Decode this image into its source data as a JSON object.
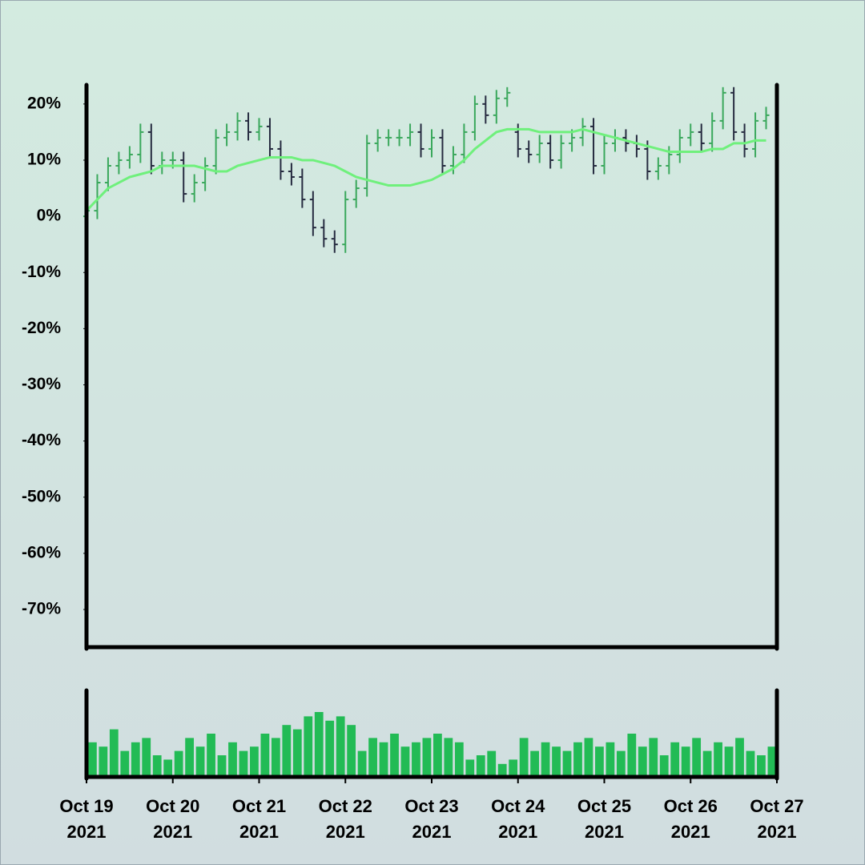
{
  "chart_data": [
    {
      "type": "ohlc",
      "categories": [
        null,
        null,
        null,
        null,
        null,
        null,
        null,
        null,
        null,
        null,
        null,
        null,
        null,
        null,
        null,
        null,
        null,
        null,
        null,
        null,
        null,
        null,
        null,
        null,
        null,
        null,
        null,
        null,
        null,
        null,
        null,
        null,
        null,
        null,
        null,
        null,
        null,
        null,
        null,
        null,
        null,
        null,
        null,
        null,
        null,
        null,
        null,
        null,
        null,
        null,
        null,
        null,
        null,
        null,
        null,
        null,
        null,
        null,
        null,
        null,
        null,
        null,
        null,
        null
      ],
      "open": [
        0,
        1,
        6,
        9,
        10,
        11,
        15,
        9,
        10,
        10,
        4,
        6,
        9,
        14,
        15,
        17,
        15,
        16,
        12,
        8,
        7,
        3,
        -2,
        -4,
        -5,
        3,
        5,
        13,
        14,
        14,
        14,
        15,
        12,
        14,
        9,
        11,
        15,
        20,
        18,
        21,
        15,
        12,
        11,
        13,
        10,
        13,
        14,
        16,
        9,
        13,
        14,
        13,
        12,
        8,
        9,
        11,
        14,
        15,
        13,
        17,
        22,
        15,
        12,
        17
      ],
      "high": [
        2.5,
        7.5,
        10.5,
        11.5,
        12.5,
        16.5,
        16.5,
        11.5,
        11.5,
        11.5,
        7.5,
        10.5,
        15.5,
        16.5,
        18.5,
        18.5,
        17.5,
        17.5,
        13.5,
        9.5,
        8.5,
        4.5,
        -0.5,
        -2.5,
        4.5,
        6.5,
        14.5,
        15.5,
        15.5,
        15.5,
        16.5,
        16.5,
        15.5,
        15.5,
        12.5,
        16.5,
        21.5,
        21.5,
        22.5,
        23,
        16.5,
        13.5,
        14.5,
        14.5,
        14.5,
        15.5,
        17.5,
        17.5,
        14.5,
        15.5,
        15.5,
        14.5,
        13.5,
        10.5,
        12.5,
        15.5,
        16.5,
        16.5,
        18.5,
        23,
        23,
        16.5,
        18.5,
        19.5
      ],
      "low": [
        -1.5,
        -0.5,
        4.5,
        7.5,
        8.5,
        9.5,
        7.5,
        7.5,
        8.5,
        2.5,
        2.5,
        4.5,
        7.5,
        12.5,
        13.5,
        13.5,
        13.5,
        10.5,
        6.5,
        5.5,
        1.5,
        -3.5,
        -5.5,
        -6.5,
        -6.5,
        1.5,
        3.5,
        11.5,
        12.5,
        12.5,
        12.5,
        10.5,
        10.5,
        7.5,
        7.5,
        9.5,
        13.5,
        16.5,
        16.5,
        19.5,
        10.5,
        9.5,
        9.5,
        8.5,
        8.5,
        11.5,
        12.5,
        7.5,
        7.5,
        11.5,
        11.5,
        10.5,
        6.5,
        6.5,
        7.5,
        9.5,
        12.5,
        11.5,
        11.5,
        15.5,
        13.5,
        10.5,
        10.5,
        15.5
      ],
      "close": [
        1,
        6,
        9,
        10,
        11,
        15,
        9,
        10,
        10,
        4,
        6,
        9,
        14,
        15,
        17,
        15,
        16,
        12,
        8,
        7,
        3,
        -2,
        -4,
        -5,
        3,
        5,
        13,
        14,
        14,
        14,
        15,
        12,
        14,
        9,
        11,
        15,
        20,
        18,
        21,
        22,
        12,
        11,
        13,
        10,
        13,
        14,
        16,
        9,
        13,
        14,
        13,
        12,
        8,
        9,
        11,
        14,
        15,
        13,
        17,
        22,
        15,
        12,
        17,
        18
      ],
      "up_color": "#3aa85c",
      "down_color": "#262b40",
      "moving_average": {
        "color": "#6ff07c",
        "values": [
          1,
          3,
          5,
          6,
          7,
          7.5,
          8,
          9,
          9,
          9,
          9,
          8.5,
          8,
          8,
          9,
          9.5,
          10,
          10.5,
          10.5,
          10.5,
          10,
          10,
          9.5,
          9,
          8,
          7,
          6.5,
          6,
          5.5,
          5.5,
          5.5,
          6,
          6.5,
          7.5,
          8.5,
          10,
          12,
          13.5,
          15,
          15.5,
          15.5,
          15.5,
          15,
          15,
          15,
          15,
          15.5,
          15,
          14.5,
          14,
          13.5,
          13,
          12.5,
          12,
          11.5,
          11.5,
          11.5,
          11.5,
          12,
          12,
          13,
          13,
          13.5,
          13.5
        ]
      },
      "xlim": [
        0,
        64
      ],
      "ylim": [
        -76.7,
        23.4
      ],
      "yticks": [
        {
          "value": 20,
          "label": "20%"
        },
        {
          "value": 10,
          "label": "10%"
        },
        {
          "value": 0,
          "label": "0%"
        },
        {
          "value": -10,
          "label": "-10%"
        },
        {
          "value": -20,
          "label": "-20%"
        },
        {
          "value": -30,
          "label": "-30%"
        },
        {
          "value": -40,
          "label": "-40%"
        },
        {
          "value": -50,
          "label": "-50%"
        },
        {
          "value": -60,
          "label": "-60%"
        },
        {
          "value": -70,
          "label": "-70%"
        }
      ],
      "grid": false
    },
    {
      "type": "bar",
      "categories": [
        null,
        null,
        null,
        null,
        null,
        null,
        null,
        null,
        null,
        null,
        null,
        null,
        null,
        null,
        null,
        null,
        null,
        null,
        null,
        null,
        null,
        null,
        null,
        null,
        null,
        null,
        null,
        null,
        null,
        null,
        null,
        null,
        null,
        null,
        null,
        null,
        null,
        null,
        null,
        null,
        null,
        null,
        null,
        null,
        null,
        null,
        null,
        null,
        null,
        null,
        null,
        null,
        null,
        null,
        null,
        null,
        null,
        null,
        null,
        null,
        null,
        null,
        null,
        null
      ],
      "values": [
        40,
        35,
        55,
        30,
        40,
        45,
        25,
        20,
        30,
        45,
        35,
        50,
        25,
        40,
        30,
        35,
        50,
        45,
        60,
        55,
        70,
        75,
        65,
        70,
        60,
        30,
        45,
        40,
        50,
        35,
        40,
        45,
        50,
        45,
        40,
        20,
        25,
        30,
        15,
        20,
        45,
        30,
        40,
        35,
        30,
        40,
        45,
        35,
        40,
        30,
        50,
        35,
        45,
        25,
        40,
        35,
        45,
        30,
        40,
        35,
        45,
        30,
        25,
        35
      ],
      "color": "#22bb55",
      "xlim": [
        0,
        64
      ],
      "ylim": [
        0,
        100
      ],
      "xticks": [
        {
          "value": 0,
          "label": "Oct 19\n2021"
        },
        {
          "value": 8,
          "label": "Oct 20\n2021"
        },
        {
          "value": 16,
          "label": "Oct 21\n2021"
        },
        {
          "value": 24,
          "label": "Oct 22\n2021"
        },
        {
          "value": 32,
          "label": "Oct 23\n2021"
        },
        {
          "value": 40,
          "label": "Oct 24\n2021"
        },
        {
          "value": 48,
          "label": "Oct 25\n2021"
        },
        {
          "value": 56,
          "label": "Oct 26\n2021"
        },
        {
          "value": 64,
          "label": "Oct 27\n2021"
        }
      ]
    }
  ]
}
